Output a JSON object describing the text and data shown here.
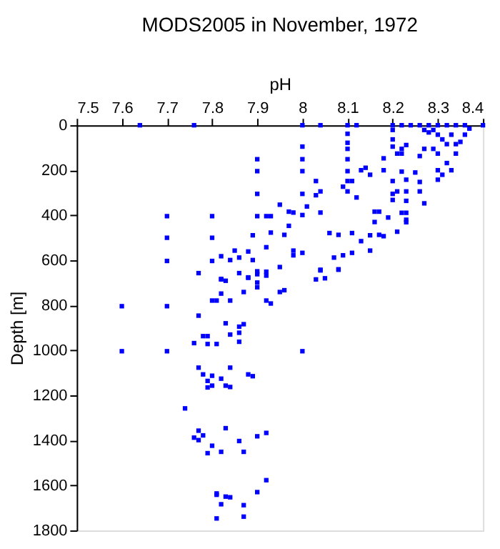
{
  "chart_data": {
    "type": "scatter",
    "title": "MODS2005 in November, 1972",
    "xlabel": "pH",
    "ylabel": "Depth [m]",
    "xlim": [
      7.5,
      8.4
    ],
    "xticks": [
      7.5,
      7.6,
      7.7,
      7.8,
      7.9,
      8,
      8.1,
      8.2,
      8.3,
      8.4
    ],
    "ylim": [
      1800,
      0
    ],
    "yticks": [
      0,
      200,
      400,
      600,
      800,
      1000,
      1200,
      1400,
      1600,
      1800
    ],
    "marker": "square",
    "grid": false,
    "legend": false,
    "series": [
      {
        "color": "#0000ff",
        "x": [
          7.64,
          7.76,
          8.0,
          8.04,
          8.1,
          8.12,
          8.2,
          8.22,
          8.24,
          8.26,
          8.28,
          8.3,
          8.32,
          8.34,
          8.36,
          8.4,
          7.9,
          7.9,
          7.9,
          8.0,
          8.0,
          8.0,
          8.0,
          8.03,
          8.03,
          8.04,
          8.1,
          8.1,
          8.1,
          8.1,
          8.1,
          8.1,
          8.1,
          8.09,
          8.11,
          8.12,
          8.13,
          8.14,
          8.15,
          8.18,
          8.18,
          8.2,
          8.2,
          8.2,
          8.21,
          8.2,
          8.2,
          8.2,
          8.21,
          8.22,
          8.22,
          8.23,
          8.22,
          8.23,
          8.23,
          8.23,
          8.22,
          8.23,
          8.23,
          8.25,
          8.26,
          8.26,
          8.27,
          8.26,
          8.27,
          8.3,
          8.3,
          8.31,
          8.32,
          8.33,
          8.34,
          8.35,
          8.36,
          8.37,
          8.29,
          8.3,
          8.31,
          8.32,
          8.29,
          8.3,
          8.33,
          8.34,
          8.28,
          8.27,
          7.7,
          7.7,
          7.7,
          7.8,
          7.8,
          7.8,
          7.77,
          7.82,
          7.82,
          7.85,
          7.84,
          7.86,
          7.88,
          7.89,
          7.89,
          7.92,
          7.9,
          7.92,
          7.93,
          7.93,
          7.95,
          7.96,
          7.97,
          7.97,
          7.98,
          7.98,
          7.98,
          8.0,
          8.0,
          8.01,
          8.04,
          8.06,
          8.08,
          8.09,
          8.11,
          8.11,
          8.13,
          8.15,
          8.15,
          8.16,
          8.17,
          8.16,
          8.17,
          8.18,
          8.19,
          8.21,
          8.23,
          8.07,
          8.04,
          8.08,
          7.95,
          7.92,
          7.88,
          7.9,
          7.82,
          7.83,
          7.86,
          7.88,
          7.9,
          7.9,
          7.9,
          7.92,
          8.03,
          8.05,
          8.08,
          8.04,
          7.8,
          7.81,
          7.82,
          7.84,
          7.87,
          7.92,
          7.93,
          7.95,
          7.96,
          7.6,
          7.7,
          7.6,
          7.7,
          8.0,
          7.77,
          7.83,
          7.86,
          7.87,
          7.86,
          7.84,
          7.78,
          7.79,
          7.76,
          7.79,
          7.81,
          7.86,
          7.77,
          7.78,
          7.8,
          7.79,
          7.82,
          7.84,
          7.88,
          7.89,
          7.79,
          7.8,
          7.83,
          7.84,
          7.74,
          7.77,
          7.76,
          7.77,
          7.78,
          7.83,
          7.86,
          7.9,
          7.92,
          7.8,
          7.79,
          7.82,
          7.87,
          7.92,
          7.9,
          7.81,
          7.81,
          7.83,
          7.84,
          7.82,
          7.87,
          7.81,
          7.87
        ],
        "values": [
          0,
          0,
          0,
          0,
          0,
          0,
          0,
          0,
          0,
          0,
          0,
          0,
          0,
          0,
          0,
          0,
          151,
          204,
          305,
          95,
          151,
          204,
          305,
          248,
          311,
          294,
          38,
          78,
          105,
          151,
          204,
          248,
          294,
          273,
          248,
          321,
          200,
          189,
          220,
          147,
          200,
          248,
          305,
          332,
          294,
          21,
          63,
          95,
          126,
          126,
          105,
          88,
          206,
          242,
          294,
          336,
          389,
          420,
          431,
          210,
          252,
          294,
          347,
          137,
          105,
          200,
          242,
          220,
          168,
          200,
          126,
          74,
          42,
          15,
          21,
          42,
          63,
          84,
          105,
          126,
          42,
          84,
          32,
          21,
          404,
          500,
          603,
          404,
          500,
          603,
          657,
          683,
          582,
          557,
          599,
          588,
          561,
          599,
          489,
          542,
          404,
          404,
          404,
          477,
          353,
          487,
          447,
          384,
          388,
          557,
          578,
          567,
          399,
          361,
          388,
          479,
          487,
          578,
          567,
          479,
          515,
          489,
          557,
          384,
          384,
          430,
          487,
          493,
          410,
          473,
          389,
          588,
          645,
          640,
          630,
          651,
          676,
          662,
          685,
          691,
          657,
          678,
          649,
          699,
          720,
          668,
          685,
          680,
          642,
          642,
          779,
          779,
          748,
          779,
          741,
          779,
          792,
          741,
          733,
          804,
          804,
          1004,
          1004,
          1004,
          846,
          880,
          895,
          884,
          922,
          930,
          937,
          937,
          968,
          972,
          972,
          962,
          1077,
          1107,
          1113,
          1136,
          1126,
          1077,
          1107,
          1115,
          1165,
          1157,
          1157,
          1163,
          1258,
          1357,
          1388,
          1399,
          1378,
          1346,
          1403,
          1382,
          1367,
          1424,
          1457,
          1451,
          1451,
          1577,
          1630,
          1636,
          1642,
          1650,
          1653,
          1684,
          1688,
          1747,
          1739
        ]
      }
    ]
  }
}
